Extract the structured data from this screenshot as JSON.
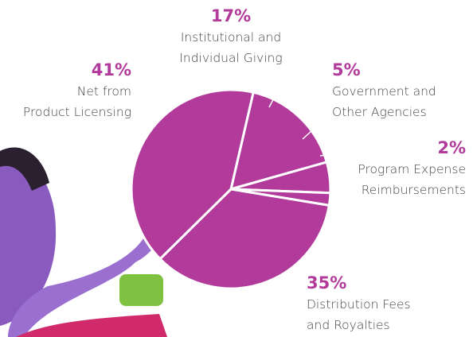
{
  "chart_data": {
    "type": "pie",
    "categories": [
      "Institutional and\nIndividual Giving",
      "Government and\nOther Agencies",
      "Program Expense\nReimbursements",
      "Distribution Fees\nand Royalties",
      "Net from\nProduct Licensing"
    ],
    "values": [
      17,
      5,
      2,
      35,
      41
    ],
    "value_labels": [
      "17%",
      "5%",
      "2%",
      "35%",
      "41%"
    ],
    "color": "#b23a9b"
  }
}
